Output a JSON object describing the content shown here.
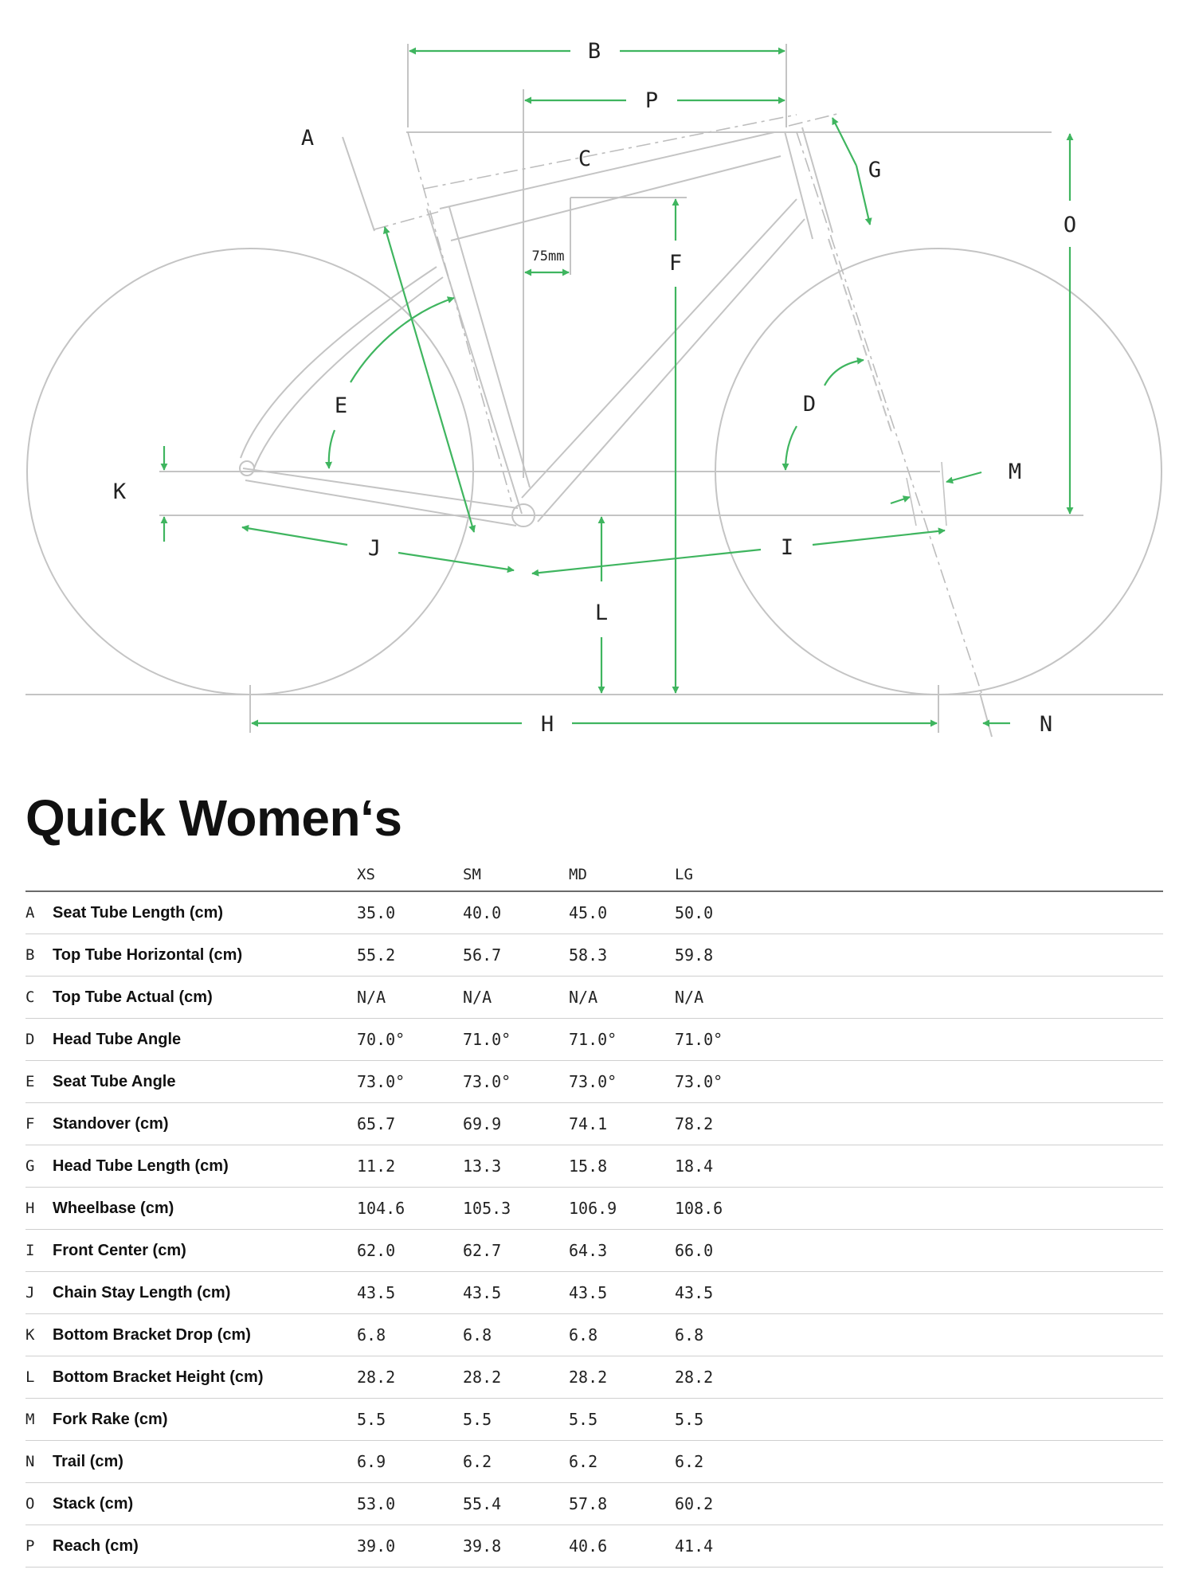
{
  "accent_color": "#3fb55f",
  "diagram": {
    "dimension_letters": {
      "A": "A",
      "B": "B",
      "C": "C",
      "D": "D",
      "E": "E",
      "F": "F",
      "G": "G",
      "H": "H",
      "I": "I",
      "J": "J",
      "K": "K",
      "L": "L",
      "M": "M",
      "N": "N",
      "O": "O",
      "P": "P"
    },
    "offset_label": "75mm"
  },
  "title": "Quick Women‘s",
  "table": {
    "sizes": [
      "XS",
      "SM",
      "MD",
      "LG"
    ],
    "rows": [
      {
        "letter": "A",
        "label": "Seat Tube Length (cm)",
        "values": [
          "35.0",
          "40.0",
          "45.0",
          "50.0"
        ]
      },
      {
        "letter": "B",
        "label": "Top Tube Horizontal (cm)",
        "values": [
          "55.2",
          "56.7",
          "58.3",
          "59.8"
        ]
      },
      {
        "letter": "C",
        "label": "Top Tube Actual (cm)",
        "values": [
          "N/A",
          "N/A",
          "N/A",
          "N/A"
        ]
      },
      {
        "letter": "D",
        "label": "Head Tube Angle",
        "values": [
          "70.0°",
          "71.0°",
          "71.0°",
          "71.0°"
        ]
      },
      {
        "letter": "E",
        "label": "Seat Tube Angle",
        "values": [
          "73.0°",
          "73.0°",
          "73.0°",
          "73.0°"
        ]
      },
      {
        "letter": "F",
        "label": "Standover (cm)",
        "values": [
          "65.7",
          "69.9",
          "74.1",
          "78.2"
        ]
      },
      {
        "letter": "G",
        "label": "Head Tube Length (cm)",
        "values": [
          "11.2",
          "13.3",
          "15.8",
          "18.4"
        ]
      },
      {
        "letter": "H",
        "label": "Wheelbase (cm)",
        "values": [
          "104.6",
          "105.3",
          "106.9",
          "108.6"
        ]
      },
      {
        "letter": "I",
        "label": "Front Center (cm)",
        "values": [
          "62.0",
          "62.7",
          "64.3",
          "66.0"
        ]
      },
      {
        "letter": "J",
        "label": "Chain Stay Length (cm)",
        "values": [
          "43.5",
          "43.5",
          "43.5",
          "43.5"
        ]
      },
      {
        "letter": "K",
        "label": "Bottom Bracket Drop (cm)",
        "values": [
          "6.8",
          "6.8",
          "6.8",
          "6.8"
        ]
      },
      {
        "letter": "L",
        "label": "Bottom Bracket Height (cm)",
        "values": [
          "28.2",
          "28.2",
          "28.2",
          "28.2"
        ]
      },
      {
        "letter": "M",
        "label": "Fork Rake (cm)",
        "values": [
          "5.5",
          "5.5",
          "5.5",
          "5.5"
        ]
      },
      {
        "letter": "N",
        "label": "Trail (cm)",
        "values": [
          "6.9",
          "6.2",
          "6.2",
          "6.2"
        ]
      },
      {
        "letter": "O",
        "label": "Stack (cm)",
        "values": [
          "53.0",
          "55.4",
          "57.8",
          "60.2"
        ]
      },
      {
        "letter": "P",
        "label": "Reach (cm)",
        "values": [
          "39.0",
          "39.8",
          "40.6",
          "41.4"
        ]
      }
    ]
  }
}
